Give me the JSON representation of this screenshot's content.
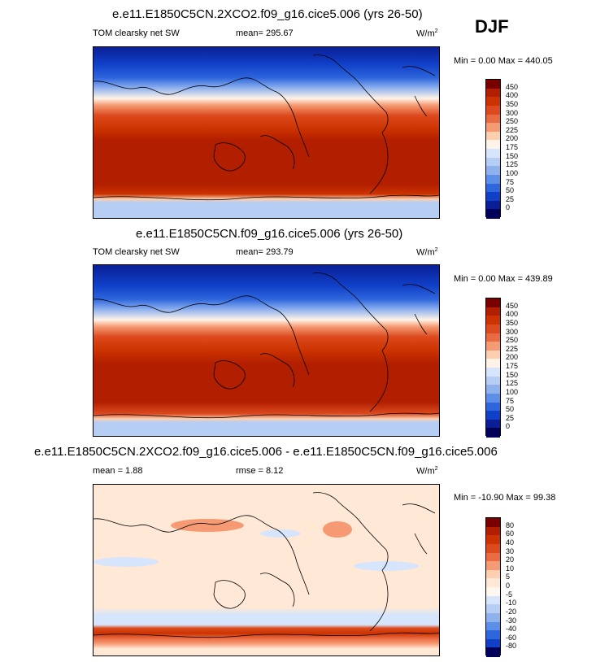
{
  "season": "DJF",
  "panels": [
    {
      "title": "e.e11.E1850C5CN.2XCO2.f09_g16.cice5.006 (yrs 26-50)",
      "left_label": "TOM clearsky net SW",
      "center_label": "mean= 295.67",
      "units": "W/m",
      "units_sup": "2",
      "minmax": "Min =   0.00 Max = 440.05",
      "colorbar": {
        "labels": [
          "450",
          "400",
          "350",
          "300",
          "250",
          "225",
          "200",
          "175",
          "150",
          "125",
          "100",
          "75",
          "50",
          "25",
          "0"
        ],
        "colors": [
          "#7a0000",
          "#b11e00",
          "#cc3300",
          "#dc4a1e",
          "#ea6a42",
          "#f59a73",
          "#fbcfb0",
          "#fff3e8",
          "#d6e5fb",
          "#b6cdf4",
          "#8fb1ee",
          "#5b8fe8",
          "#2e66dd",
          "#1040c8",
          "#0a1f96",
          "#00005a"
        ]
      }
    },
    {
      "title": "e.e11.E1850C5CN.f09_g16.cice5.006 (yrs 26-50)",
      "left_label": "TOM clearsky net SW",
      "center_label": "mean= 293.79",
      "units": "W/m",
      "units_sup": "2",
      "minmax": "Min =   0.00 Max = 439.89",
      "colorbar": {
        "labels": [
          "450",
          "400",
          "350",
          "300",
          "250",
          "225",
          "200",
          "175",
          "150",
          "125",
          "100",
          "75",
          "50",
          "25",
          "0"
        ],
        "colors": [
          "#7a0000",
          "#b11e00",
          "#cc3300",
          "#dc4a1e",
          "#ea6a42",
          "#f59a73",
          "#fbcfb0",
          "#fff3e8",
          "#d6e5fb",
          "#b6cdf4",
          "#8fb1ee",
          "#5b8fe8",
          "#2e66dd",
          "#1040c8",
          "#0a1f96",
          "#00005a"
        ]
      }
    },
    {
      "title": "e.e11.E1850C5CN.2XCO2.f09_g16.cice5.006 - e.e11.E1850C5CN.f09_g16.cice5.006",
      "left_label": "mean =   1.88",
      "center_label": "rmse =   8.12",
      "units": "W/m",
      "units_sup": "2",
      "minmax": "Min = -10.90 Max =  99.38",
      "colorbar": {
        "labels": [
          "80",
          "60",
          "40",
          "30",
          "20",
          "10",
          "5",
          "0",
          "-5",
          "-10",
          "-20",
          "-30",
          "-40",
          "-60",
          "-80"
        ],
        "colors": [
          "#7a0000",
          "#b11e00",
          "#cc3300",
          "#dc4a1e",
          "#ea6a42",
          "#f59a73",
          "#fbcfb0",
          "#ffe8d6",
          "#fff6ee",
          "#d6e5fb",
          "#b6cdf4",
          "#8fb1ee",
          "#5b8fe8",
          "#2e66dd",
          "#1040c8",
          "#00005a"
        ]
      }
    }
  ]
}
